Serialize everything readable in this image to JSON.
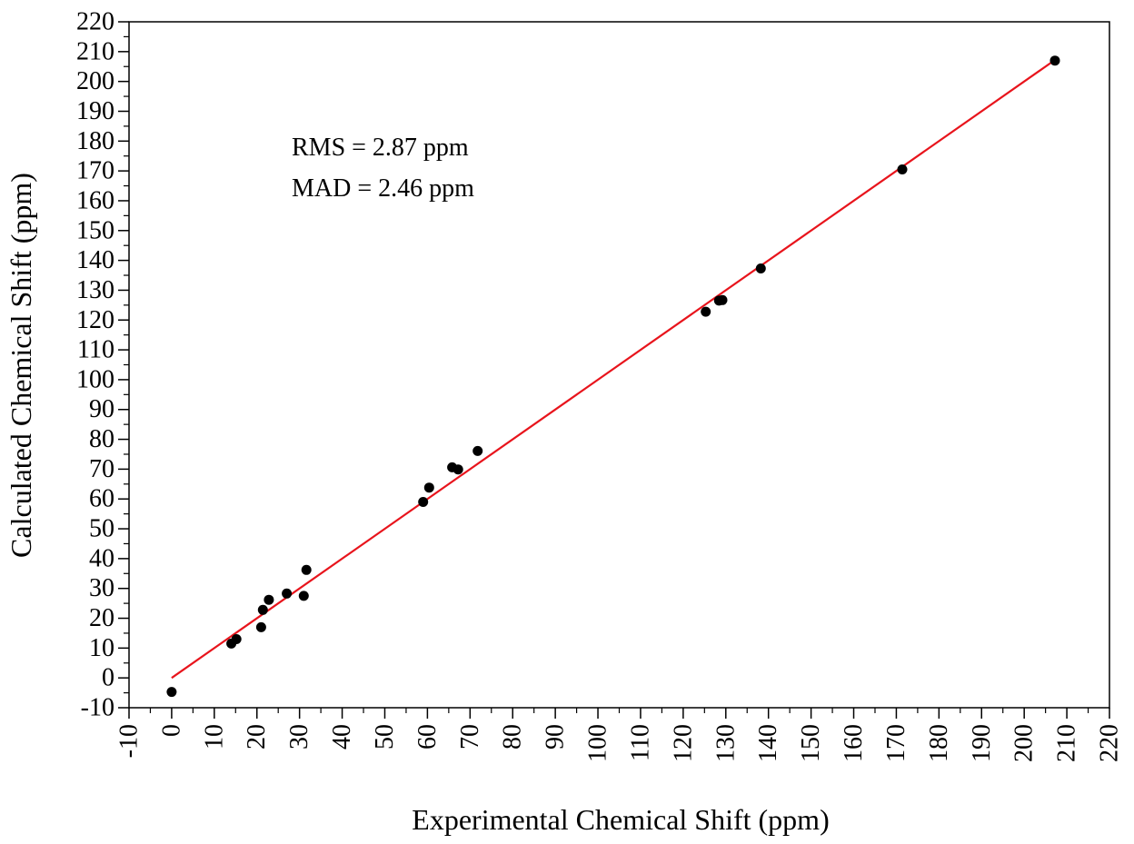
{
  "chart_data": {
    "type": "scatter",
    "xlabel": "Experimental Chemical Shift (ppm)",
    "ylabel": "Calculated Chemical Shift (ppm)",
    "xlim": [
      -10,
      220
    ],
    "ylim": [
      -10,
      220
    ],
    "x_ticks": [
      -10,
      0,
      10,
      20,
      30,
      40,
      50,
      60,
      70,
      80,
      90,
      100,
      110,
      120,
      130,
      140,
      150,
      160,
      170,
      180,
      190,
      200,
      210,
      220
    ],
    "y_ticks": [
      -10,
      0,
      10,
      20,
      30,
      40,
      50,
      60,
      70,
      80,
      90,
      100,
      110,
      120,
      130,
      140,
      150,
      160,
      170,
      180,
      190,
      200,
      210,
      220
    ],
    "grid": false,
    "annotations": [
      "RMS = 2.87 ppm",
      "MAD = 2.46 ppm"
    ],
    "series": [
      {
        "type": "scatter",
        "color": "#000000",
        "points": [
          [
            0,
            -4.7
          ],
          [
            14,
            11.5
          ],
          [
            15.2,
            13
          ],
          [
            21,
            17
          ],
          [
            21.4,
            22.8
          ],
          [
            22.8,
            26.2
          ],
          [
            27,
            28.3
          ],
          [
            31,
            27.5
          ],
          [
            31.6,
            36.2
          ],
          [
            59,
            59
          ],
          [
            60.4,
            63.8
          ],
          [
            65.8,
            70.6
          ],
          [
            67.2,
            69.9
          ],
          [
            71.8,
            76.1
          ],
          [
            125.3,
            122.8
          ],
          [
            128.4,
            126.5
          ],
          [
            129.2,
            126.7
          ],
          [
            138.2,
            137.3
          ],
          [
            171.4,
            170.5
          ],
          [
            207.2,
            207
          ]
        ]
      },
      {
        "type": "line",
        "color": "#e8141c",
        "points": [
          [
            0,
            0
          ],
          [
            207.2,
            207.2
          ]
        ]
      }
    ]
  }
}
